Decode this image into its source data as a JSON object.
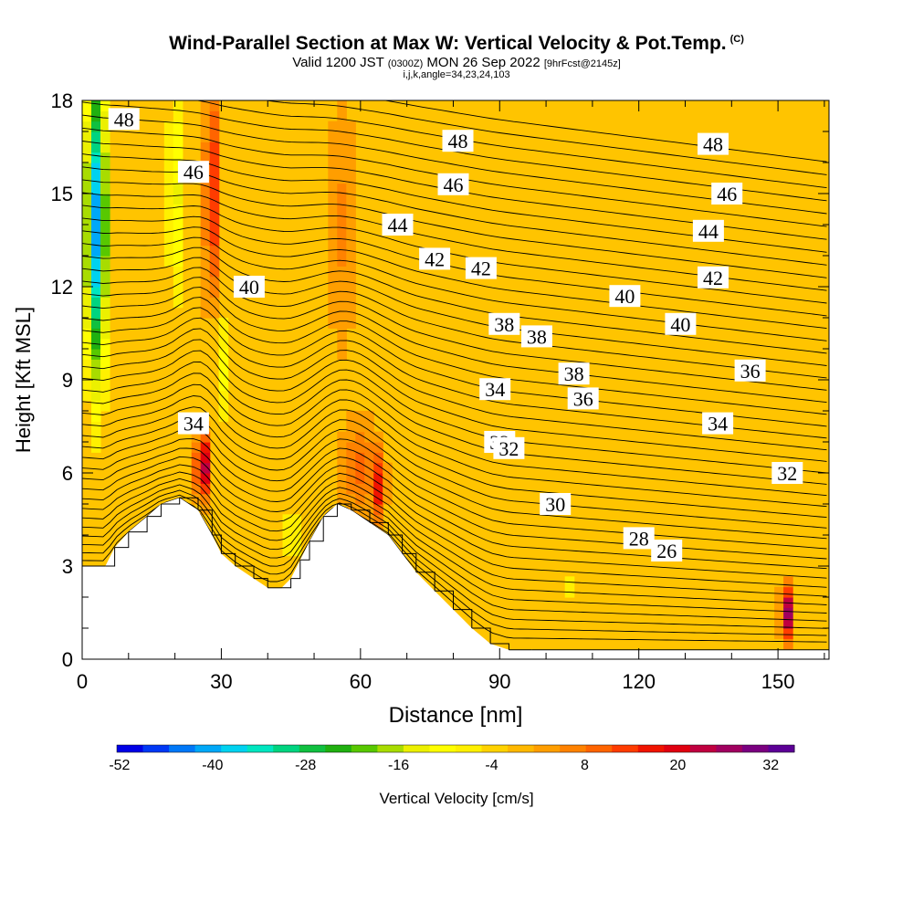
{
  "title": {
    "main": "Wind-Parallel Section at Max W: Vertical Velocity & Pot.Temp.",
    "copyright": "(C)",
    "valid_prefix": "Valid 1200 JST",
    "valid_utc": "(0300Z)",
    "valid_date": "MON 26 Sep 2022",
    "forecast": "[9hrFcst@2145z]",
    "indices": "i,j,k,angle=34,23,24,103"
  },
  "chart_data": {
    "type": "heatmap",
    "xlabel": "Distance [nm]",
    "ylabel": "Height [Kft MSL]",
    "xlim": [
      0,
      161
    ],
    "ylim": [
      0,
      18
    ],
    "x_ticks": [
      0,
      30,
      60,
      90,
      120,
      150
    ],
    "y_ticks": [
      0,
      3,
      6,
      9,
      12,
      15,
      18
    ],
    "colorbar": {
      "label": "Vertical Velocity [cm/s]",
      "tick_labels": [
        -52,
        -40,
        -28,
        -16,
        -4,
        8,
        20,
        32
      ],
      "colors": [
        "#0000e6",
        "#0038f5",
        "#0078f8",
        "#00a8f8",
        "#00d2f0",
        "#00e6c0",
        "#00d480",
        "#10c040",
        "#20b010",
        "#58c800",
        "#a8dc00",
        "#ecf000",
        "#ffff00",
        "#fff000",
        "#ffd200",
        "#ffb800",
        "#ff9e00",
        "#ff8200",
        "#ff6400",
        "#ff3c00",
        "#f01400",
        "#e00010",
        "#c00040",
        "#a00060",
        "#7a0080",
        "#5c0096"
      ]
    },
    "theta_contours": [
      26,
      28,
      30,
      32,
      34,
      36,
      38,
      40,
      42,
      44,
      46,
      48
    ],
    "contour_labels": [
      {
        "text": "48",
        "x": 9,
        "y": 17.4
      },
      {
        "text": "46",
        "x": 24,
        "y": 15.7
      },
      {
        "text": "44",
        "x": 68,
        "y": 14.0
      },
      {
        "text": "42",
        "x": 86,
        "y": 12.6
      },
      {
        "text": "40",
        "x": 36,
        "y": 12.0
      },
      {
        "text": "38",
        "x": 91,
        "y": 10.8
      },
      {
        "text": "36",
        "x": 144,
        "y": 9.3
      },
      {
        "text": "34",
        "x": 137,
        "y": 7.6
      },
      {
        "text": "32",
        "x": 90,
        "y": 7.0
      },
      {
        "text": "30",
        "x": 102,
        "y": 5.0
      },
      {
        "text": "28",
        "x": 120,
        "y": 3.9
      },
      {
        "text": "26",
        "x": 126,
        "y": 3.5
      },
      {
        "text": "48",
        "x": 81,
        "y": 16.7
      },
      {
        "text": "46",
        "x": 80,
        "y": 15.3
      },
      {
        "text": "42",
        "x": 76,
        "y": 12.9
      },
      {
        "text": "40",
        "x": 117,
        "y": 11.7
      },
      {
        "text": "38",
        "x": 98,
        "y": 10.4
      },
      {
        "text": "34",
        "x": 89,
        "y": 8.7
      },
      {
        "text": "36",
        "x": 108,
        "y": 8.4
      },
      {
        "text": "32",
        "x": 92,
        "y": 6.8
      },
      {
        "text": "48",
        "x": 136,
        "y": 16.6
      },
      {
        "text": "46",
        "x": 139,
        "y": 15.0
      },
      {
        "text": "44",
        "x": 135,
        "y": 13.8
      },
      {
        "text": "42",
        "x": 136,
        "y": 12.3
      },
      {
        "text": "40",
        "x": 129,
        "y": 10.8
      },
      {
        "text": "38",
        "x": 106,
        "y": 9.2
      },
      {
        "text": "34",
        "x": 24,
        "y": 7.6
      },
      {
        "text": "32",
        "x": 152,
        "y": 6.0
      }
    ],
    "terrain": [
      [
        0,
        3
      ],
      [
        5,
        3
      ],
      [
        7,
        3.6
      ],
      [
        10,
        4.1
      ],
      [
        14,
        4.6
      ],
      [
        17,
        5.0
      ],
      [
        21,
        5.2
      ],
      [
        25,
        4.8
      ],
      [
        28,
        4.0
      ],
      [
        30,
        3.4
      ],
      [
        33,
        3.0
      ],
      [
        37,
        2.6
      ],
      [
        40,
        2.3
      ],
      [
        43,
        2.3
      ],
      [
        45,
        2.6
      ],
      [
        47,
        3.2
      ],
      [
        49,
        3.8
      ],
      [
        52,
        4.6
      ],
      [
        55,
        5.0
      ],
      [
        58,
        4.8
      ],
      [
        62,
        4.4
      ],
      [
        66,
        4.0
      ],
      [
        69,
        3.4
      ],
      [
        72,
        2.8
      ],
      [
        76,
        2.2
      ],
      [
        80,
        1.6
      ],
      [
        84,
        1.0
      ],
      [
        88,
        0.5
      ],
      [
        92,
        0.3
      ],
      [
        97,
        0.3
      ],
      [
        161,
        0.3
      ]
    ]
  }
}
